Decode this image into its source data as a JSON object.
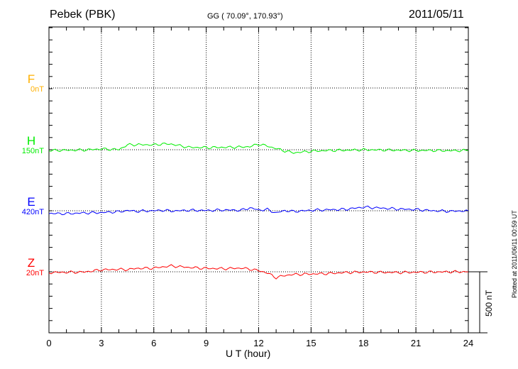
{
  "chart_data": {
    "type": "line",
    "title": "Pebek (PBK)",
    "subtitle": "GG ( 70.09°, 170.93°)",
    "date": "2011/05/11",
    "xlabel": "U T (hour)",
    "xlim": [
      0,
      24
    ],
    "xticks": [
      "0",
      "3",
      "6",
      "9",
      "12",
      "15",
      "18",
      "21",
      "24"
    ],
    "scale_bar": "500 nT",
    "footer": "Plotted at 2011/06/11 00:59 UT",
    "x": [
      0,
      1,
      2,
      3,
      4,
      4.5,
      5,
      6,
      6.5,
      7,
      8,
      9,
      10,
      11,
      11.5,
      12,
      12.5,
      13,
      13.5,
      14,
      15,
      16,
      17,
      18,
      19,
      20,
      21,
      22,
      23,
      24
    ],
    "series": [
      {
        "name": "F",
        "baseline_label": "0nT",
        "color": "#ffb000",
        "values": null
      },
      {
        "name": "H",
        "baseline_label": "150nT",
        "color": "#00ee00",
        "values": [
          -6,
          -4,
          -2,
          6,
          2,
          40,
          42,
          40,
          48,
          46,
          20,
          18,
          20,
          22,
          26,
          46,
          30,
          10,
          -10,
          -25,
          -12,
          -6,
          -4,
          0,
          -2,
          -4,
          -6,
          -6,
          -8,
          -6
        ]
      },
      {
        "name": "E",
        "baseline_label": "420nT",
        "color": "#0000ff",
        "values": [
          -22,
          -24,
          -18,
          -15,
          -8,
          2,
          -4,
          0,
          4,
          -2,
          4,
          2,
          6,
          4,
          24,
          6,
          10,
          -18,
          2,
          -6,
          4,
          8,
          12,
          30,
          22,
          14,
          10,
          0,
          -4,
          0
        ]
      },
      {
        "name": "Z",
        "baseline_label": "20nT",
        "color": "#ff0000",
        "values": [
          -6,
          -4,
          -2,
          16,
          20,
          18,
          28,
          30,
          40,
          48,
          36,
          28,
          26,
          30,
          22,
          10,
          -10,
          -48,
          -30,
          -22,
          -18,
          -14,
          -6,
          -2,
          -4,
          -6,
          -4,
          -2,
          0,
          0
        ]
      }
    ]
  }
}
